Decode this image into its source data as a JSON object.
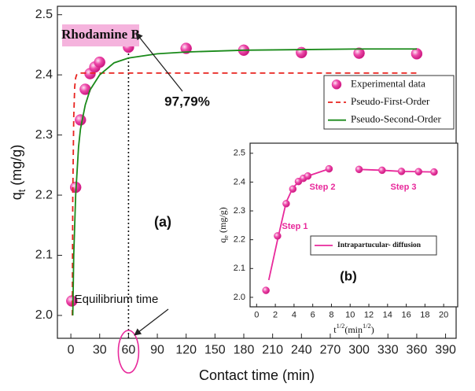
{
  "chart_data": [
    {
      "type": "scatter",
      "xlabel": "Contact time (min)",
      "ylabel": [
        "q",
        "t",
        " (mg/g)"
      ],
      "xlim": [
        -14,
        401
      ],
      "ylim": [
        1.962,
        2.514
      ],
      "xticks": [
        0,
        30,
        60,
        90,
        120,
        150,
        180,
        210,
        240,
        270,
        300,
        330,
        360,
        390
      ],
      "yticks": [
        {
          "value": 2,
          "label": "2.0"
        },
        2.1,
        2.2,
        2.3,
        2.4,
        2.5
      ],
      "grid": false,
      "legend": "upper right",
      "annotations": [
        "Rhodamine B",
        "97,79%",
        "(a)",
        "Equilibrium time"
      ],
      "equilibrium_x": 60,
      "series": [
        {
          "name": "Experimental data",
          "color": "#e8299b",
          "style": "marker",
          "x": [
            1,
            5,
            10,
            15,
            20,
            25,
            30,
            60,
            120,
            180,
            240,
            300,
            360
          ],
          "values": [
            2.024,
            2.213,
            2.325,
            2.376,
            2.402,
            2.413,
            2.421,
            2.446,
            2.444,
            2.441,
            2.437,
            2.436,
            2.435
          ]
        },
        {
          "name": "Pseudo-First-Order",
          "color": "#e8231f",
          "style": "dashed",
          "x": [
            1.5,
            2,
            3,
            4,
            5,
            6,
            8,
            360
          ],
          "values": [
            2.0,
            2.2,
            2.33,
            2.38,
            2.395,
            2.4,
            2.403,
            2.403
          ]
        },
        {
          "name": "Pseudo-Second-Order",
          "color": "#1a8a1a",
          "style": "solid",
          "x": [
            2,
            3,
            5,
            8,
            10,
            15,
            20,
            30,
            45,
            60,
            90,
            120,
            180,
            240,
            300,
            360
          ],
          "values": [
            2.0,
            2.1,
            2.2,
            2.28,
            2.31,
            2.35,
            2.375,
            2.4,
            2.42,
            2.428,
            2.435,
            2.438,
            2.441,
            2.442,
            2.443,
            2.443
          ]
        }
      ]
    },
    {
      "type": "scatter",
      "xlabel": [
        "t",
        "1/2",
        "(min",
        "1/2",
        ")"
      ],
      "ylabel": [
        "q",
        "e",
        " (mg/g)"
      ],
      "xlim": [
        -0.7,
        21.5
      ],
      "ylim": [
        1.967,
        2.535
      ],
      "xticks": [
        0,
        2,
        4,
        6,
        8,
        10,
        12,
        14,
        16,
        18,
        20
      ],
      "yticks": [
        {
          "value": 2,
          "label": "2.0"
        },
        2.1,
        2.2,
        2.3,
        2.4,
        2.5
      ],
      "grid": false,
      "legend": "center right",
      "annotations": [
        "Step 1",
        "Step 2",
        "Step 3",
        "(b)"
      ],
      "series": [
        {
          "name": "Intrapartucular- diffusion",
          "color": "#e8299b",
          "style": "solid",
          "x": [
            1.3,
            2.24,
            3.16,
            3.87,
            4.47,
            5.0,
            5.48,
            7.75,
            null,
            10.95,
            13.42,
            15.49,
            17.32,
            18.97
          ],
          "values": [
            2.06,
            2.2,
            2.33,
            2.38,
            2.4,
            2.413,
            2.421,
            2.446,
            null,
            2.444,
            2.441,
            2.437,
            2.436,
            2.435
          ]
        },
        {
          "color": "#e8299b",
          "style": "marker",
          "x": [
            1,
            2.236,
            3.162,
            3.873,
            4.472,
            5,
            5.477,
            7.746,
            10.954,
            13.416,
            15.492,
            17.321,
            18.974
          ],
          "values": [
            2.024,
            2.213,
            2.325,
            2.376,
            2.402,
            2.413,
            2.421,
            2.446,
            2.444,
            2.441,
            2.437,
            2.436,
            2.435
          ]
        }
      ]
    }
  ]
}
